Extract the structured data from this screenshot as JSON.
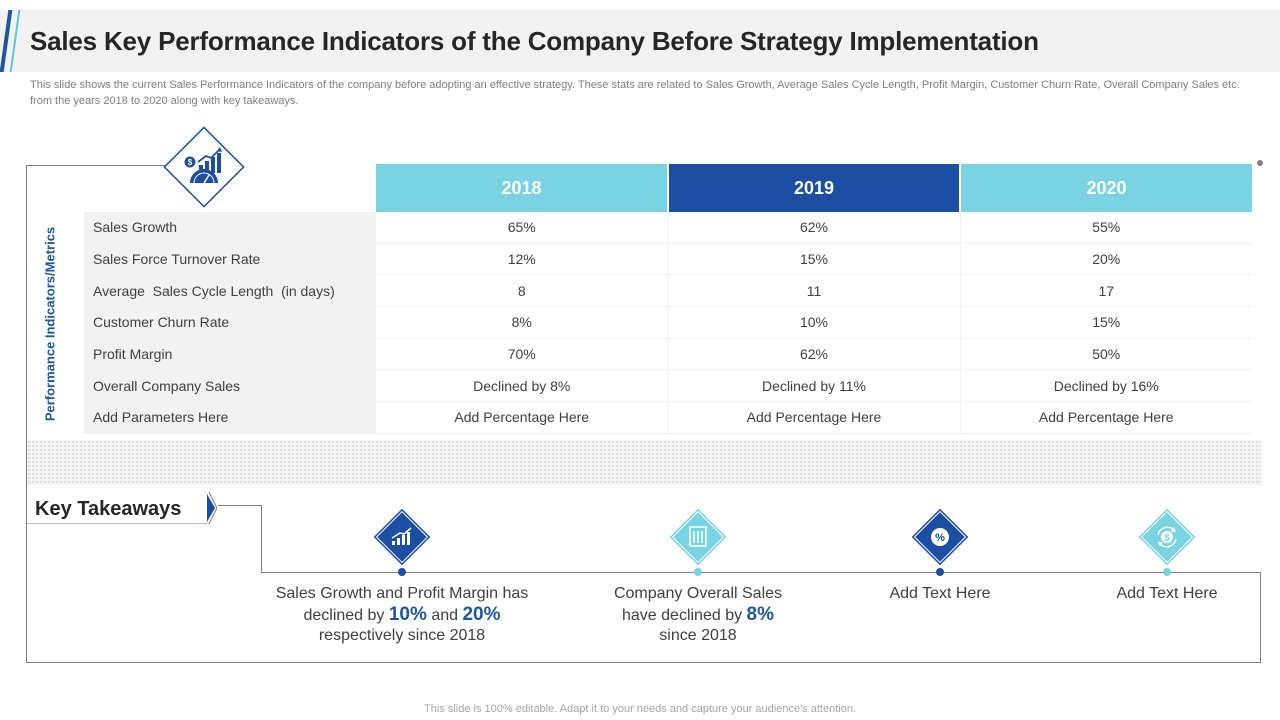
{
  "header": {
    "title": "Sales Key Performance Indicators of the Company Before Strategy Implementation",
    "subtitle": "This slide shows the current Sales Performance Indicators of the company before adopting an effective strategy. These stats are related to Sales Growth, Average Sales Cycle Length,  Profit Margin, Customer Churn Rate, Overall Company Sales etc. from the years 2018 to 2020 along with key takeaways."
  },
  "table": {
    "axis_label": "Performance Indicators/Metrics",
    "years": [
      "2018",
      "2019",
      "2020"
    ],
    "rows": [
      {
        "metric": "Sales Growth",
        "values": [
          "65%",
          "62%",
          "55%"
        ]
      },
      {
        "metric": "Sales Force Turnover Rate",
        "values": [
          "12%",
          "15%",
          "20%"
        ]
      },
      {
        "metric": "Average  Sales Cycle Length  (in days)",
        "values": [
          "8",
          "11",
          "17"
        ]
      },
      {
        "metric": "Customer Churn Rate",
        "values": [
          "8%",
          "10%",
          "15%"
        ]
      },
      {
        "metric": "Profit Margin",
        "values": [
          "70%",
          "62%",
          "50%"
        ]
      },
      {
        "metric": "Overall Company Sales",
        "values": [
          "Declined by 8%",
          "Declined by 11%",
          "Declined by 16%"
        ]
      },
      {
        "metric": "Add Parameters Here",
        "values": [
          "Add Percentage Here",
          "Add Percentage Here",
          "Add Percentage Here"
        ]
      }
    ]
  },
  "takeaways": {
    "title": "Key Takeaways",
    "item1": {
      "icon": "growth-chart-icon",
      "line1": "Sales Growth  and Profit Margin has",
      "line2_pre": "declined by ",
      "value_a": "10%",
      "line2_mid": " and ",
      "value_b": "20%",
      "line3": "respectively since 2018"
    },
    "item2": {
      "icon": "building-icon",
      "line1": "Company Overall Sales",
      "line2_pre": "have declined by ",
      "value": "8%",
      "line3": "since 2018"
    },
    "item3": {
      "icon": "percent-badge-icon",
      "text": "Add Text Here"
    },
    "item4": {
      "icon": "dollar-cycle-icon",
      "text": "Add Text Here"
    }
  },
  "footer": "This slide is 100% editable. Adapt it to your needs and capture your audience's attention.",
  "colors": {
    "dark_blue": "#1c4ea3",
    "light_blue": "#79d3e2",
    "text": "#404040"
  }
}
